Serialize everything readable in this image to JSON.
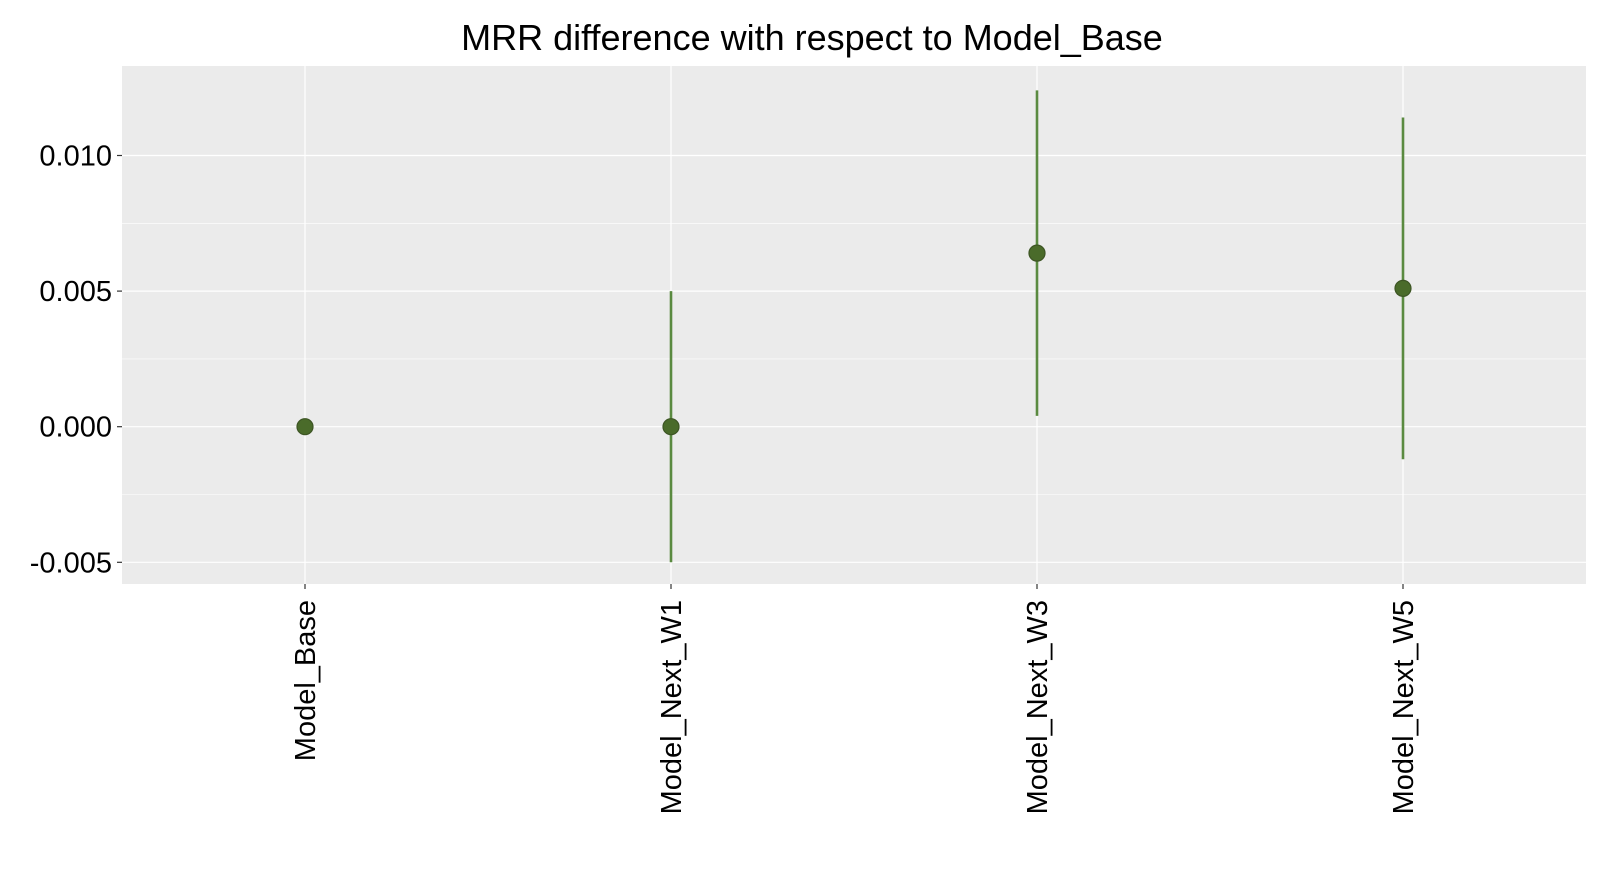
{
  "chart_data": {
    "type": "scatter",
    "title": "MRR difference with respect to Model_Base",
    "xlabel": "",
    "ylabel": "",
    "categories": [
      "Model_Base",
      "Model_Next_W1",
      "Model_Next_W3",
      "Model_Next_W5"
    ],
    "series": [
      {
        "values": [
          0.0,
          0.0,
          0.0064,
          0.0051
        ],
        "lower": [
          0.0,
          -0.005,
          0.0004,
          -0.0012
        ],
        "upper": [
          0.0,
          0.005,
          0.0124,
          0.0114
        ]
      }
    ],
    "ylim": [
      -0.0058,
      0.0133
    ],
    "yticks": [
      -0.005,
      0.0,
      0.005,
      0.01
    ],
    "ytick_labels": [
      "-0.005",
      "0.000",
      "0.005",
      "0.010"
    ],
    "grid": true,
    "legend": "none",
    "colors": {
      "point": "#4a6b2a",
      "point_edge": "#3d5524",
      "errorbar": "#5a8a40",
      "panel": "#ebebeb",
      "grid": "#ffffff"
    }
  }
}
